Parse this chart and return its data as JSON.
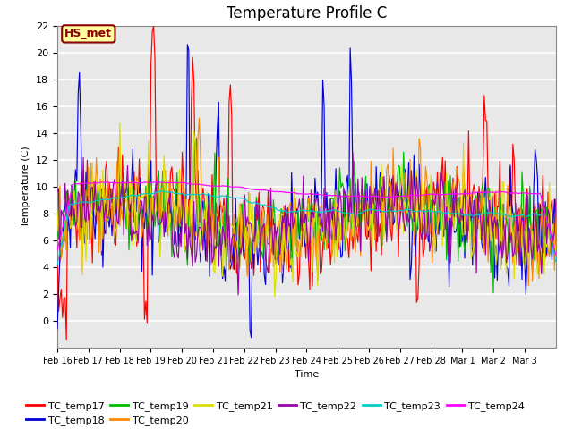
{
  "title": "Temperature Profile C",
  "xlabel": "Time",
  "ylabel": "Temperature (C)",
  "ylim": [
    -2,
    22
  ],
  "yticks": [
    0,
    2,
    4,
    6,
    8,
    10,
    12,
    14,
    16,
    18,
    20,
    22
  ],
  "xtick_labels": [
    "Feb 16",
    "Feb 17",
    "Feb 18",
    "Feb 19",
    "Feb 20",
    "Feb 21",
    "Feb 22",
    "Feb 23",
    "Feb 24",
    "Feb 25",
    "Feb 26",
    "Feb 27",
    "Feb 28",
    "Mar 1",
    "Mar 2",
    "Mar 3"
  ],
  "annotation_text": "HS_met",
  "annotation_color": "#8B0000",
  "annotation_bg": "#FFFFA0",
  "series_colors": {
    "TC_temp17": "#FF0000",
    "TC_temp18": "#0000DD",
    "TC_temp19": "#00BB00",
    "TC_temp20": "#FF8800",
    "TC_temp21": "#DDDD00",
    "TC_temp22": "#9900AA",
    "TC_temp23": "#00CCCC",
    "TC_temp24": "#FF00FF"
  },
  "bg_color": "#E8E8E8",
  "grid_color": "#FFFFFF",
  "title_fontsize": 12,
  "axis_fontsize": 8,
  "legend_fontsize": 8
}
